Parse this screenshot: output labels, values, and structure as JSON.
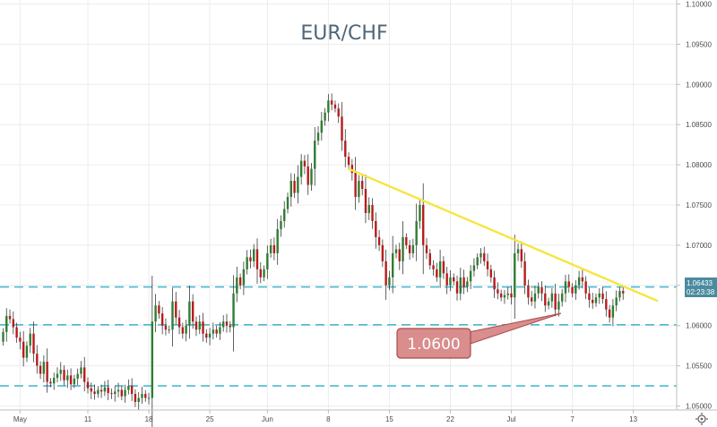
{
  "chart_data": {
    "type": "candlestick",
    "title": "EUR/CHF",
    "ylim": [
      1.0495,
      1.1005
    ],
    "y_ticks": [
      "1.10000",
      "1.09500",
      "1.09000",
      "1.08500",
      "1.08000",
      "1.07500",
      "1.07000",
      "1.06500",
      "1.06000",
      "1.05500",
      "1.05000"
    ],
    "x_ticks": [
      "May",
      "11",
      "18",
      "25",
      "Jun",
      "8",
      "15",
      "22",
      "Jul",
      "7",
      "13"
    ],
    "x_tick_index": [
      5,
      25,
      43,
      61,
      78,
      96,
      114,
      132,
      150,
      168,
      186
    ],
    "last_price": "1.06433",
    "countdown": "02:23:38",
    "support_label": "1.0600",
    "horizontal_levels": [
      1.0648,
      1.0601,
      1.0525
    ],
    "trendline": {
      "start": [
        102,
        1.0795
      ],
      "end": [
        193,
        1.0631
      ]
    },
    "colors": {
      "up": "#2e7d32",
      "down": "#b71c1c",
      "level": "#4bbad0",
      "trend": "#f5e642",
      "callout_fill": "#d98d8d",
      "callout_stroke": "#a94b4b",
      "price_tag": "#4a8ba0"
    },
    "closes": [
      1.0592,
      1.0612,
      1.0608,
      1.0598,
      1.0585,
      1.058,
      1.056,
      1.0575,
      1.059,
      1.0565,
      1.055,
      1.054,
      1.0555,
      1.053,
      1.0528,
      1.0535,
      1.054,
      1.0545,
      1.0532,
      1.0538,
      1.0527,
      1.0534,
      1.054,
      1.0548,
      1.053,
      1.0522,
      1.0518,
      1.0515,
      1.052,
      1.0518,
      1.0523,
      1.0516,
      1.0515,
      1.0518,
      1.052,
      1.0512,
      1.052,
      1.0525,
      1.0515,
      1.0505,
      1.051,
      1.0515,
      1.051,
      1.051,
      1.0605,
      1.0625,
      1.0615,
      1.06,
      1.0595,
      1.0595,
      1.063,
      1.061,
      1.0598,
      1.059,
      1.06,
      1.063,
      1.0605,
      1.0595,
      1.0605,
      1.059,
      1.0585,
      1.059,
      1.0595,
      1.059,
      1.0598,
      1.0605,
      1.06,
      1.0598,
      1.064,
      1.066,
      1.065,
      1.067,
      1.0685,
      1.068,
      1.0695,
      1.067,
      1.066,
      1.067,
      1.069,
      1.07,
      1.069,
      1.072,
      1.073,
      1.0745,
      1.076,
      1.078,
      1.0765,
      1.0785,
      1.0805,
      1.0798,
      1.0775,
      1.0795,
      1.083,
      1.084,
      1.0855,
      1.0865,
      1.088,
      1.0875,
      1.087,
      1.086,
      1.083,
      1.081,
      1.08,
      1.079,
      1.076,
      1.078,
      1.077,
      1.074,
      1.075,
      1.073,
      1.071,
      1.07,
      1.068,
      1.065,
      1.066,
      1.069,
      1.0695,
      1.068,
      1.071,
      1.07,
      1.069,
      1.07,
      1.073,
      1.075,
      1.07,
      1.069,
      1.0675,
      1.067,
      1.066,
      1.068,
      1.0665,
      1.065,
      1.066,
      1.0655,
      1.064,
      1.066,
      1.0648,
      1.0655,
      1.0668,
      1.0675,
      1.0685,
      1.069,
      1.068,
      1.067,
      1.066,
      1.0645,
      1.064,
      1.0635,
      1.0638,
      1.064,
      1.0635,
      1.069,
      1.0695,
      1.068,
      1.065,
      1.0635,
      1.063,
      1.064,
      1.0648,
      1.064,
      1.0625,
      1.063,
      1.064,
      1.062,
      1.063,
      1.064,
      1.0655,
      1.0648,
      1.064,
      1.065,
      1.066,
      1.0655,
      1.064,
      1.0632,
      1.0628,
      1.0635,
      1.064,
      1.0633,
      1.062,
      1.061,
      1.0625,
      1.0635,
      1.0643,
      1.064
    ]
  }
}
